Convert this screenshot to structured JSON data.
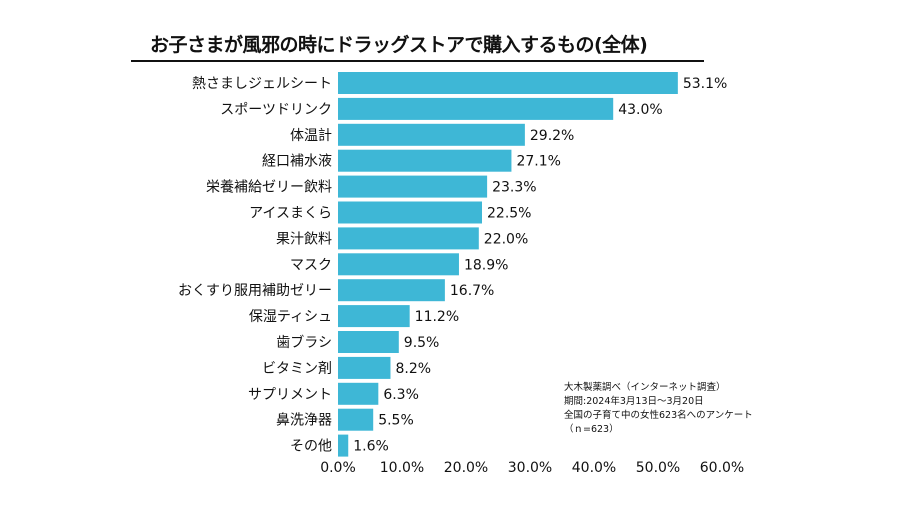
{
  "title": "お子さまが風邪の時にドラッグストアで購入するもの(全体)",
  "note": {
    "lines": [
      "大木製薬調べ（インターネット調査）",
      "期間:2024年3月13日〜3月20日",
      "全国の子育て中の女性623名へのアンケート",
      "（ｎ=623）"
    ]
  },
  "chart_data": {
    "type": "bar",
    "orientation": "horizontal",
    "title": "お子さまが風邪の時にドラッグストアで購入するもの(全体)",
    "categories": [
      "熱さましジェルシート",
      "スポーツドリンク",
      "体温計",
      "経口補水液",
      "栄養補給ゼリー飲料",
      "アイスまくら",
      "果汁飲料",
      "マスク",
      "おくすり服用補助ゼリー",
      "保湿ティシュ",
      "歯ブラシ",
      "ビタミン剤",
      "サプリメント",
      "鼻洗浄器",
      "その他"
    ],
    "values": [
      53.1,
      43.0,
      29.2,
      27.1,
      23.3,
      22.5,
      22.0,
      18.9,
      16.7,
      11.2,
      9.5,
      8.2,
      6.3,
      5.5,
      1.6
    ],
    "value_labels": [
      "53.1%",
      "43.0%",
      "29.2%",
      "27.1%",
      "23.3%",
      "22.5%",
      "22.0%",
      "18.9%",
      "16.7%",
      "11.2%",
      "9.5%",
      "8.2%",
      "6.3%",
      "5.5%",
      "1.6%"
    ],
    "xlim": [
      0,
      60
    ],
    "xticks": [
      "0.0%",
      "10.0%",
      "20.0%",
      "30.0%",
      "40.0%",
      "50.0%",
      "60.0%"
    ],
    "xlabel": "",
    "ylabel": "",
    "grid": false,
    "bar_color": "#3EB7D6"
  }
}
